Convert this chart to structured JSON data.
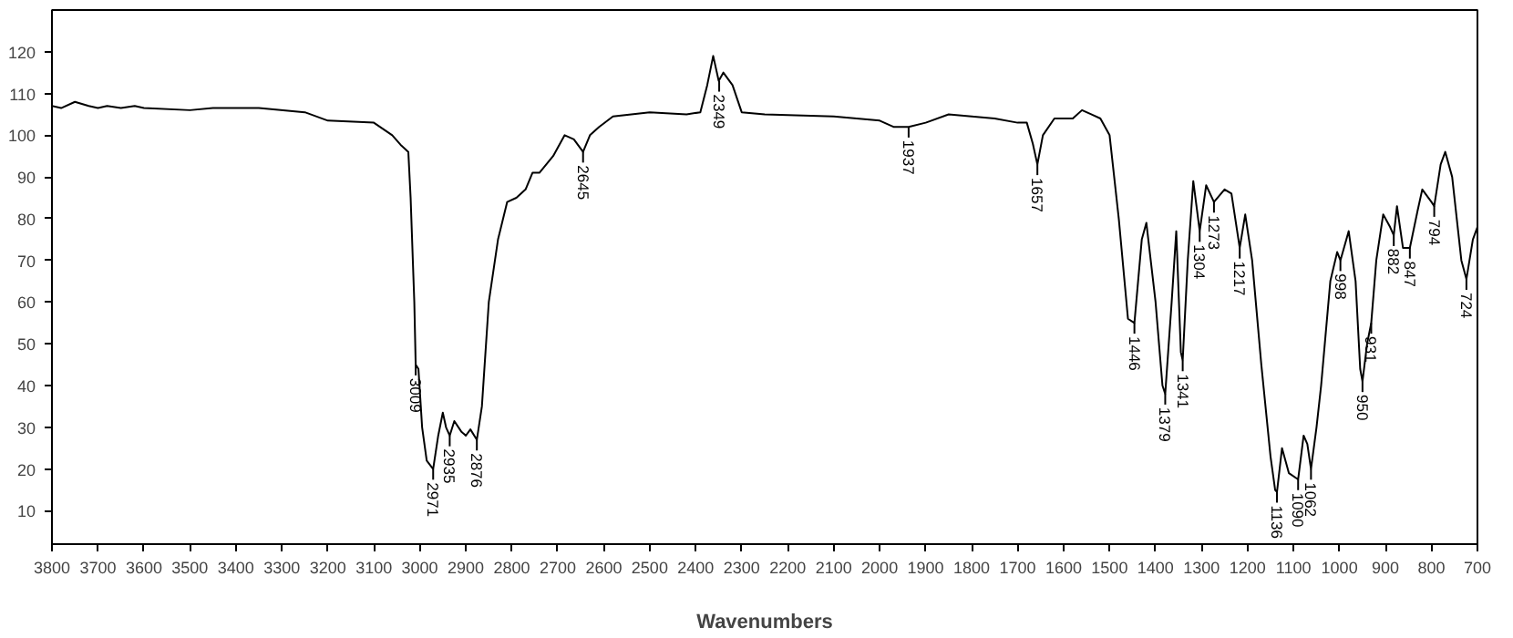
{
  "chart_data": {
    "type": "line",
    "xlabel": "Wavenumbers",
    "xlim": [
      3800,
      700
    ],
    "ylim": [
      2,
      130
    ],
    "xticks": [
      3800,
      3700,
      3600,
      3500,
      3400,
      3300,
      3200,
      3100,
      3000,
      2900,
      2800,
      2700,
      2600,
      2500,
      2400,
      2300,
      2200,
      2100,
      2000,
      1900,
      1800,
      1700,
      1600,
      1500,
      1400,
      1300,
      1200,
      1100,
      1000,
      900,
      800,
      700
    ],
    "yticks": [
      10,
      20,
      30,
      40,
      50,
      60,
      70,
      80,
      90,
      100,
      110,
      120
    ],
    "grid": false,
    "marker": "none",
    "line_style": "solid",
    "series": [
      {
        "color": "#000000",
        "x": [
          3800,
          3780,
          3750,
          3720,
          3700,
          3680,
          3650,
          3620,
          3600,
          3500,
          3450,
          3350,
          3250,
          3200,
          3100,
          3060,
          3040,
          3025,
          3020,
          3012,
          3009,
          3003,
          2995,
          2985,
          2971,
          2960,
          2950,
          2943,
          2935,
          2925,
          2910,
          2900,
          2890,
          2876,
          2865,
          2850,
          2830,
          2810,
          2790,
          2770,
          2755,
          2740,
          2710,
          2685,
          2665,
          2645,
          2630,
          2610,
          2580,
          2500,
          2420,
          2390,
          2375,
          2362,
          2350,
          2340,
          2320,
          2300,
          2250,
          2100,
          2000,
          1970,
          1937,
          1900,
          1850,
          1800,
          1750,
          1700,
          1680,
          1667,
          1657,
          1645,
          1620,
          1580,
          1560,
          1540,
          1520,
          1500,
          1480,
          1460,
          1446,
          1430,
          1420,
          1400,
          1385,
          1379,
          1365,
          1355,
          1345,
          1341,
          1330,
          1318,
          1304,
          1290,
          1273,
          1250,
          1235,
          1217,
          1205,
          1190,
          1170,
          1150,
          1140,
          1136,
          1125,
          1110,
          1090,
          1078,
          1070,
          1062,
          1050,
          1040,
          1020,
          1005,
          998,
          980,
          965,
          955,
          950,
          940,
          931,
          920,
          905,
          890,
          882,
          875,
          862,
          847,
          830,
          820,
          800,
          794,
          780,
          770,
          755,
          735,
          724,
          710,
          700
        ],
        "values": [
          107,
          106.5,
          108,
          107,
          106.5,
          107,
          106.5,
          107,
          106.5,
          106,
          106.5,
          106.5,
          105.5,
          103.5,
          103,
          100,
          97.5,
          96,
          85,
          60,
          45,
          44,
          30,
          22,
          20,
          28,
          33.5,
          30,
          28,
          31.5,
          29,
          28,
          29.5,
          27,
          35,
          60,
          75,
          84,
          85,
          87,
          91,
          91,
          95,
          100,
          99,
          96,
          100,
          102,
          104.5,
          105.5,
          105,
          105.5,
          112,
          119,
          113,
          115,
          112,
          105.5,
          105,
          104.5,
          103.5,
          102,
          102,
          103,
          105,
          104.5,
          104,
          103,
          103,
          98,
          93,
          100,
          104,
          104,
          106,
          105,
          104,
          100,
          80,
          56,
          55,
          75,
          79,
          60,
          40,
          38,
          60,
          77,
          48,
          46,
          70,
          89,
          77,
          88,
          84,
          87,
          86,
          73,
          81,
          70,
          45,
          23,
          15,
          14.5,
          25,
          19,
          17.5,
          28,
          26,
          20,
          30,
          40,
          65,
          72,
          70,
          77,
          65,
          44,
          41,
          50,
          55,
          70,
          81,
          78,
          76,
          83,
          73,
          73,
          82,
          87,
          84,
          83,
          93,
          96,
          90,
          70,
          65.5,
          75,
          78
        ]
      }
    ],
    "annotations": [
      {
        "text": "3009",
        "x": 3009,
        "y": 45
      },
      {
        "text": "2971",
        "x": 2971,
        "y": 20
      },
      {
        "text": "2935",
        "x": 2935,
        "y": 28
      },
      {
        "text": "2876",
        "x": 2876,
        "y": 27
      },
      {
        "text": "2645",
        "x": 2645,
        "y": 96
      },
      {
        "text": "2349",
        "x": 2349,
        "y": 113
      },
      {
        "text": "1937",
        "x": 1937,
        "y": 102
      },
      {
        "text": "1657",
        "x": 1657,
        "y": 93
      },
      {
        "text": "1446",
        "x": 1446,
        "y": 55
      },
      {
        "text": "1379",
        "x": 1379,
        "y": 38
      },
      {
        "text": "1341",
        "x": 1341,
        "y": 46
      },
      {
        "text": "1304",
        "x": 1304,
        "y": 77
      },
      {
        "text": "1273",
        "x": 1273,
        "y": 84
      },
      {
        "text": "1217",
        "x": 1217,
        "y": 73
      },
      {
        "text": "1136",
        "x": 1136,
        "y": 14.5
      },
      {
        "text": "1090",
        "x": 1090,
        "y": 17.5
      },
      {
        "text": "1062",
        "x": 1062,
        "y": 20
      },
      {
        "text": "998",
        "x": 998,
        "y": 70
      },
      {
        "text": "950",
        "x": 950,
        "y": 41
      },
      {
        "text": "931",
        "x": 931,
        "y": 55
      },
      {
        "text": "882",
        "x": 882,
        "y": 76
      },
      {
        "text": "847",
        "x": 847,
        "y": 73
      },
      {
        "text": "794",
        "x": 794,
        "y": 83
      },
      {
        "text": "724",
        "x": 724,
        "y": 65.5
      }
    ]
  }
}
